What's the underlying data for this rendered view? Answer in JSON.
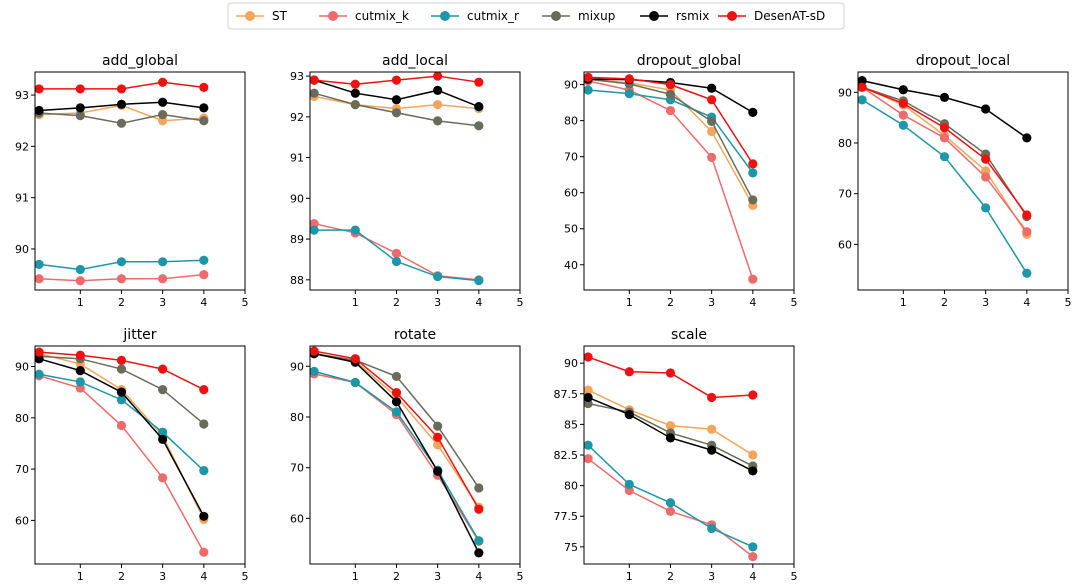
{
  "chart_data": {
    "type": "line",
    "legend": {
      "placement": "top-center",
      "entries": [
        {
          "name": "ST",
          "color": "#f5a55a"
        },
        {
          "name": "cutmix_k",
          "color": "#ee6b6b"
        },
        {
          "name": "cutmix_r",
          "color": "#1d97a8"
        },
        {
          "name": "mixup",
          "color": "#6b6b5c"
        },
        {
          "name": "rsmix",
          "color": "#000000"
        },
        {
          "name": "DesenAT-sD",
          "color": "#ee1111"
        }
      ]
    },
    "subplots": [
      {
        "title": "add_global",
        "xlim": [
          -0.1,
          5
        ],
        "xticks": [
          1,
          2,
          3,
          4,
          5
        ],
        "ylim": [
          89.2,
          93.45
        ],
        "yticks": [
          90,
          91,
          92,
          93
        ],
        "x": [
          0,
          1,
          2,
          3,
          4
        ],
        "series": [
          {
            "name": "ST",
            "values": [
              92.62,
              92.65,
              92.8,
              92.5,
              92.55
            ]
          },
          {
            "name": "cutmix_k",
            "values": [
              89.42,
              89.38,
              89.42,
              89.42,
              89.5
            ]
          },
          {
            "name": "cutmix_r",
            "values": [
              89.7,
              89.6,
              89.75,
              89.75,
              89.78
            ]
          },
          {
            "name": "mixup",
            "values": [
              92.65,
              92.6,
              92.45,
              92.62,
              92.5
            ]
          },
          {
            "name": "rsmix",
            "values": [
              92.7,
              92.75,
              92.82,
              92.86,
              92.75
            ]
          },
          {
            "name": "DesenAT-sD",
            "values": [
              93.12,
              93.12,
              93.12,
              93.25,
              93.15
            ]
          }
        ]
      },
      {
        "title": "add_local",
        "xlim": [
          -0.1,
          5
        ],
        "xticks": [
          1,
          2,
          3,
          4,
          5
        ],
        "ylim": [
          87.75,
          93.1
        ],
        "yticks": [
          88,
          89,
          90,
          91,
          92,
          93
        ],
        "x": [
          0,
          1,
          2,
          3,
          4
        ],
        "series": [
          {
            "name": "ST",
            "values": [
              92.5,
              92.3,
              92.2,
              92.3,
              92.2
            ]
          },
          {
            "name": "cutmix_k",
            "values": [
              89.38,
              89.15,
              88.65,
              88.1,
              88.0
            ]
          },
          {
            "name": "cutmix_r",
            "values": [
              89.22,
              89.22,
              88.45,
              88.08,
              87.98
            ]
          },
          {
            "name": "mixup",
            "values": [
              92.58,
              92.3,
              92.1,
              91.9,
              91.78
            ]
          },
          {
            "name": "rsmix",
            "values": [
              92.9,
              92.58,
              92.42,
              92.65,
              92.25
            ]
          },
          {
            "name": "DesenAT-sD",
            "values": [
              92.9,
              92.8,
              92.9,
              93.0,
              92.85
            ]
          }
        ]
      },
      {
        "title": "dropout_global",
        "xlim": [
          -0.1,
          5
        ],
        "xticks": [
          1,
          2,
          3,
          4,
          5
        ],
        "ylim": [
          33,
          93.5
        ],
        "yticks": [
          40,
          50,
          60,
          70,
          80,
          90
        ],
        "x": [
          0,
          1,
          2,
          3,
          4
        ],
        "series": [
          {
            "name": "ST",
            "values": [
              91.5,
              90.5,
              88.5,
              77.0,
              56.5
            ]
          },
          {
            "name": "cutmix_k",
            "values": [
              91.0,
              88.5,
              82.8,
              69.8,
              36.0
            ]
          },
          {
            "name": "cutmix_r",
            "values": [
              88.5,
              87.5,
              85.8,
              81.0,
              65.5
            ]
          },
          {
            "name": "mixup",
            "values": [
              91.5,
              90.2,
              87.3,
              79.8,
              58.0
            ]
          },
          {
            "name": "rsmix",
            "values": [
              91.5,
              91.4,
              90.6,
              89.0,
              82.3
            ]
          },
          {
            "name": "DesenAT-sD",
            "values": [
              92.0,
              91.6,
              90.0,
              85.8,
              68.0
            ]
          }
        ]
      },
      {
        "title": "dropout_local",
        "xlim": [
          -0.1,
          5
        ],
        "xticks": [
          1,
          2,
          3,
          4,
          5
        ],
        "ylim": [
          51,
          94
        ],
        "yticks": [
          60,
          70,
          80,
          90
        ],
        "x": [
          0,
          1,
          2,
          3,
          4
        ],
        "series": [
          {
            "name": "ST",
            "values": [
              91.0,
              87.5,
              81.5,
              74.5,
              62.0
            ]
          },
          {
            "name": "cutmix_k",
            "values": [
              91.0,
              85.5,
              81.0,
              73.3,
              62.5
            ]
          },
          {
            "name": "cutmix_r",
            "values": [
              88.5,
              83.5,
              77.3,
              67.2,
              54.3
            ]
          },
          {
            "name": "mixup",
            "values": [
              91.0,
              88.3,
              83.8,
              77.8,
              65.5
            ]
          },
          {
            "name": "rsmix",
            "values": [
              92.3,
              90.5,
              89.0,
              86.7,
              81.0
            ]
          },
          {
            "name": "DesenAT-sD",
            "values": [
              91.0,
              87.8,
              83.0,
              76.8,
              65.8
            ]
          }
        ]
      },
      {
        "title": "jitter",
        "xlim": [
          -0.1,
          5
        ],
        "xticks": [
          1,
          2,
          3,
          4,
          5
        ],
        "ylim": [
          51.5,
          94
        ],
        "yticks": [
          60,
          70,
          80,
          90
        ],
        "x": [
          0,
          1,
          2,
          3,
          4
        ],
        "series": [
          {
            "name": "ST",
            "values": [
              92.5,
              90.5,
              85.5,
              76.5,
              60.2
            ]
          },
          {
            "name": "cutmix_k",
            "values": [
              88.2,
              85.8,
              78.5,
              68.3,
              53.8
            ]
          },
          {
            "name": "cutmix_r",
            "values": [
              88.5,
              87.0,
              83.5,
              77.2,
              69.7
            ]
          },
          {
            "name": "mixup",
            "values": [
              92.0,
              91.5,
              89.5,
              85.5,
              78.8
            ]
          },
          {
            "name": "rsmix",
            "values": [
              91.5,
              89.2,
              85.0,
              75.8,
              60.8
            ]
          },
          {
            "name": "DesenAT-sD",
            "values": [
              92.8,
              92.2,
              91.2,
              89.5,
              85.5
            ]
          }
        ]
      },
      {
        "title": "rotate",
        "xlim": [
          -0.1,
          5
        ],
        "xticks": [
          1,
          2,
          3,
          4,
          5
        ],
        "ylim": [
          51,
          94
        ],
        "yticks": [
          60,
          70,
          80,
          90
        ],
        "x": [
          0,
          1,
          2,
          3,
          4
        ],
        "series": [
          {
            "name": "ST",
            "values": [
              92.5,
              91.0,
              84.0,
              74.5,
              62.2
            ]
          },
          {
            "name": "cutmix_k",
            "values": [
              88.5,
              86.8,
              80.5,
              68.5,
              55.5
            ]
          },
          {
            "name": "cutmix_r",
            "values": [
              89.0,
              86.8,
              81.0,
              69.5,
              55.6
            ]
          },
          {
            "name": "mixup",
            "values": [
              92.5,
              91.2,
              88.0,
              78.2,
              66.0
            ]
          },
          {
            "name": "rsmix",
            "values": [
              92.5,
              90.8,
              83.0,
              69.3,
              53.2
            ]
          },
          {
            "name": "DesenAT-sD",
            "values": [
              93.0,
              91.5,
              84.8,
              76.0,
              61.8
            ]
          }
        ]
      },
      {
        "title": "scale",
        "xlim": [
          -0.1,
          5
        ],
        "xticks": [
          1,
          2,
          3,
          4,
          5
        ],
        "ylim": [
          73.6,
          91.4
        ],
        "yticks": [
          75.0,
          77.5,
          80.0,
          82.5,
          85.0,
          87.5,
          90.0
        ],
        "x": [
          0,
          1,
          2,
          3,
          4
        ],
        "series": [
          {
            "name": "ST",
            "values": [
              87.8,
              86.2,
              84.9,
              84.6,
              82.5
            ]
          },
          {
            "name": "cutmix_k",
            "values": [
              82.2,
              79.6,
              77.9,
              76.8,
              74.2
            ]
          },
          {
            "name": "cutmix_r",
            "values": [
              83.3,
              80.1,
              78.6,
              76.5,
              75.0
            ]
          },
          {
            "name": "mixup",
            "values": [
              86.7,
              86.0,
              84.3,
              83.3,
              81.6
            ]
          },
          {
            "name": "rsmix",
            "values": [
              87.2,
              85.8,
              83.9,
              82.9,
              81.2
            ]
          },
          {
            "name": "DesenAT-sD",
            "values": [
              90.5,
              89.3,
              89.2,
              87.2,
              87.4
            ]
          }
        ]
      }
    ]
  }
}
